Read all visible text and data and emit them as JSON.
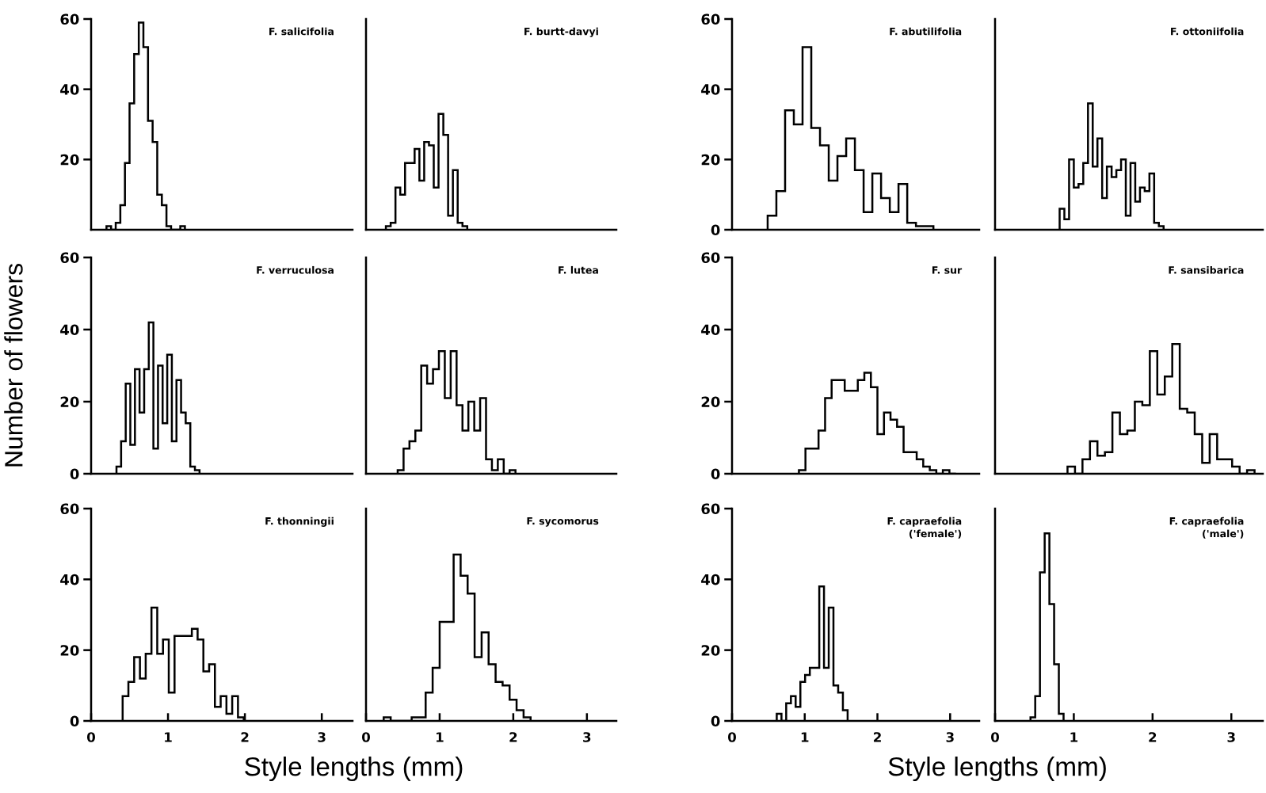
{
  "chart_data": [
    {
      "type": "histogram",
      "title": "F. salicifolia",
      "color": "#000000",
      "xlim": [
        0,
        3.4
      ],
      "ylim": [
        0,
        60
      ],
      "yticks": [
        20,
        40,
        60
      ],
      "tick_labels": "y",
      "bins": [
        0.2,
        0.26,
        0.32,
        0.38,
        0.44,
        0.5,
        0.56,
        0.62,
        0.68,
        0.74,
        0.8,
        0.86,
        0.92,
        0.98,
        1.04,
        1.1,
        1.16,
        1.22
      ],
      "values": [
        1,
        0,
        2,
        7,
        19,
        36,
        50,
        59,
        52,
        31,
        25,
        10,
        7,
        1,
        0,
        0,
        1
      ]
    },
    {
      "type": "histogram",
      "title": "F. burtt-davyi",
      "color": "#000000",
      "xlim": [
        0,
        3.4
      ],
      "ylim": [
        0,
        60
      ],
      "tick_labels": false,
      "bins": [
        0.27,
        0.335,
        0.4,
        0.465,
        0.53,
        0.595,
        0.66,
        0.725,
        0.79,
        0.855,
        0.92,
        0.985,
        1.05,
        1.115,
        1.18,
        1.245,
        1.31,
        1.375
      ],
      "values": [
        1,
        2,
        12,
        10,
        19,
        19,
        23,
        14,
        25,
        24,
        12,
        33,
        27,
        4,
        17,
        2,
        1
      ]
    },
    {
      "type": "histogram",
      "title": "F. verruculosa",
      "ylabel": "Number of flowers",
      "color": "#000000",
      "xlim": [
        0,
        3.4
      ],
      "ylim": [
        0,
        60
      ],
      "yticks": [
        0,
        20,
        40,
        60
      ],
      "tick_labels": "y",
      "bins": [
        0.33,
        0.39,
        0.45,
        0.51,
        0.57,
        0.63,
        0.69,
        0.75,
        0.81,
        0.87,
        0.93,
        0.99,
        1.05,
        1.11,
        1.17,
        1.23,
        1.29,
        1.35,
        1.41
      ],
      "values": [
        2,
        9,
        25,
        8,
        29,
        17,
        29,
        42,
        7,
        30,
        14,
        33,
        9,
        26,
        17,
        14,
        2,
        1
      ]
    },
    {
      "type": "histogram",
      "title": "F. lutea",
      "color": "#000000",
      "xlim": [
        0,
        3.4
      ],
      "ylim": [
        0,
        60
      ],
      "tick_labels": false,
      "bins": [
        0.43,
        0.51,
        0.59,
        0.67,
        0.75,
        0.83,
        0.91,
        0.99,
        1.07,
        1.15,
        1.23,
        1.31,
        1.39,
        1.47,
        1.55,
        1.63,
        1.71,
        1.79,
        1.87,
        1.95,
        2.03
      ],
      "values": [
        1,
        7,
        9,
        12,
        30,
        25,
        29,
        34,
        21,
        34,
        19,
        12,
        20,
        12,
        21,
        4,
        1,
        4,
        0,
        1
      ]
    },
    {
      "type": "histogram",
      "title": "F. thonningii",
      "xlabel": "Style lengths (mm)",
      "color": "#000000",
      "xlim": [
        0,
        3.4
      ],
      "ylim": [
        0,
        60
      ],
      "xticks": [
        0,
        1,
        2,
        3
      ],
      "yticks": [
        0,
        20,
        40,
        60
      ],
      "bins": [
        0.41,
        0.485,
        0.56,
        0.635,
        0.71,
        0.785,
        0.86,
        0.935,
        1.01,
        1.085,
        1.16,
        1.235,
        1.31,
        1.385,
        1.46,
        1.535,
        1.61,
        1.685,
        1.76,
        1.835,
        1.91,
        1.985
      ],
      "values": [
        7,
        11,
        18,
        12,
        19,
        32,
        19,
        23,
        8,
        24,
        24,
        24,
        26,
        23,
        14,
        16,
        4,
        7,
        2,
        7,
        1
      ]
    },
    {
      "type": "histogram",
      "title": "F. sycomorus",
      "color": "#000000",
      "xlim": [
        0,
        3.4
      ],
      "ylim": [
        0,
        60
      ],
      "xticks": [
        0,
        1,
        2,
        3
      ],
      "tick_labels": "x",
      "bins": [
        0.24,
        0.335,
        0.43,
        0.525,
        0.62,
        0.715,
        0.81,
        0.905,
        1.0,
        1.095,
        1.19,
        1.285,
        1.38,
        1.475,
        1.57,
        1.665,
        1.76,
        1.855,
        1.95,
        2.045,
        2.14,
        2.235
      ],
      "values": [
        1,
        0,
        0,
        0,
        1,
        1,
        8,
        15,
        28,
        28,
        47,
        41,
        36,
        18,
        25,
        16,
        11,
        10,
        6,
        3,
        1
      ]
    },
    {
      "type": "histogram",
      "title": "F. abutilifolia",
      "color": "#000000",
      "xlim": [
        0,
        3.4
      ],
      "ylim": [
        0,
        60
      ],
      "yticks": [
        0,
        20,
        40,
        60
      ],
      "tick_labels": "y",
      "bins": [
        0.49,
        0.61,
        0.73,
        0.85,
        0.97,
        1.09,
        1.21,
        1.33,
        1.45,
        1.57,
        1.69,
        1.81,
        1.93,
        2.05,
        2.17,
        2.29,
        2.41,
        2.53,
        2.65,
        2.77
      ],
      "values": [
        4,
        11,
        34,
        30,
        52,
        29,
        24,
        14,
        21,
        26,
        17,
        5,
        16,
        9,
        5,
        13,
        2,
        1,
        1
      ]
    },
    {
      "type": "histogram",
      "title": "F. ottoniifolia",
      "color": "#000000",
      "xlim": [
        0,
        3.4
      ],
      "ylim": [
        0,
        60
      ],
      "tick_labels": false,
      "bins": [
        0.82,
        0.88,
        0.94,
        1.0,
        1.06,
        1.12,
        1.18,
        1.24,
        1.3,
        1.36,
        1.42,
        1.48,
        1.54,
        1.6,
        1.66,
        1.72,
        1.78,
        1.84,
        1.9,
        1.96,
        2.02,
        2.08,
        2.14
      ],
      "values": [
        6,
        3,
        20,
        12,
        13,
        19,
        36,
        18,
        26,
        9,
        18,
        15,
        17,
        20,
        4,
        19,
        8,
        12,
        11,
        16,
        2,
        1
      ]
    },
    {
      "type": "histogram",
      "title": "F. sur",
      "color": "#000000",
      "xlim": [
        0,
        3.4
      ],
      "ylim": [
        0,
        60
      ],
      "yticks": [
        0,
        20,
        40,
        60
      ],
      "tick_labels": "y",
      "bins": [
        0.92,
        1.01,
        1.1,
        1.19,
        1.28,
        1.37,
        1.46,
        1.55,
        1.64,
        1.73,
        1.82,
        1.91,
        2.0,
        2.09,
        2.18,
        2.27,
        2.36,
        2.45,
        2.54,
        2.63,
        2.72,
        2.81,
        2.9,
        2.99,
        3.08
      ],
      "values": [
        1,
        7,
        7,
        12,
        21,
        26,
        26,
        23,
        23,
        26,
        28,
        24,
        11,
        17,
        15,
        13,
        6,
        6,
        4,
        2,
        1,
        0,
        1,
        0
      ]
    },
    {
      "type": "histogram",
      "title": "F. sansibarica",
      "color": "#000000",
      "xlim": [
        0,
        3.4
      ],
      "ylim": [
        0,
        60
      ],
      "tick_labels": false,
      "bins": [
        0.92,
        1.015,
        1.11,
        1.205,
        1.3,
        1.395,
        1.49,
        1.585,
        1.68,
        1.775,
        1.87,
        1.965,
        2.06,
        2.155,
        2.25,
        2.345,
        2.44,
        2.535,
        2.63,
        2.725,
        2.82,
        2.915,
        3.01,
        3.105,
        3.2,
        3.295
      ],
      "values": [
        2,
        0,
        4,
        9,
        5,
        6,
        17,
        11,
        12,
        20,
        19,
        34,
        22,
        27,
        36,
        18,
        17,
        11,
        3,
        11,
        4,
        4,
        2,
        0,
        1
      ]
    },
    {
      "type": "histogram",
      "title": "F. capraefolia\n('female')",
      "xlabel": "Style lengths (mm)",
      "color": "#000000",
      "xlim": [
        0,
        3.4
      ],
      "ylim": [
        0,
        60
      ],
      "xticks": [
        0,
        1,
        2,
        3
      ],
      "yticks": [
        0,
        20,
        40,
        60
      ],
      "bins": [
        0.615,
        0.68,
        0.745,
        0.81,
        0.875,
        0.94,
        1.005,
        1.07,
        1.135,
        1.2,
        1.265,
        1.33,
        1.395,
        1.46,
        1.525,
        1.59
      ],
      "values": [
        2,
        0,
        5,
        7,
        4,
        11,
        13,
        15,
        15,
        38,
        15,
        32,
        10,
        8,
        3
      ]
    },
    {
      "type": "histogram",
      "title": "F. capraefolia\n('male')",
      "color": "#000000",
      "xlim": [
        0,
        3.4
      ],
      "ylim": [
        0,
        60
      ],
      "xticks": [
        0,
        1,
        2,
        3
      ],
      "tick_labels": "x",
      "bins": [
        0.45,
        0.51,
        0.57,
        0.63,
        0.69,
        0.75,
        0.81,
        0.87
      ],
      "values": [
        1,
        7,
        42,
        53,
        33,
        16,
        2
      ]
    }
  ]
}
